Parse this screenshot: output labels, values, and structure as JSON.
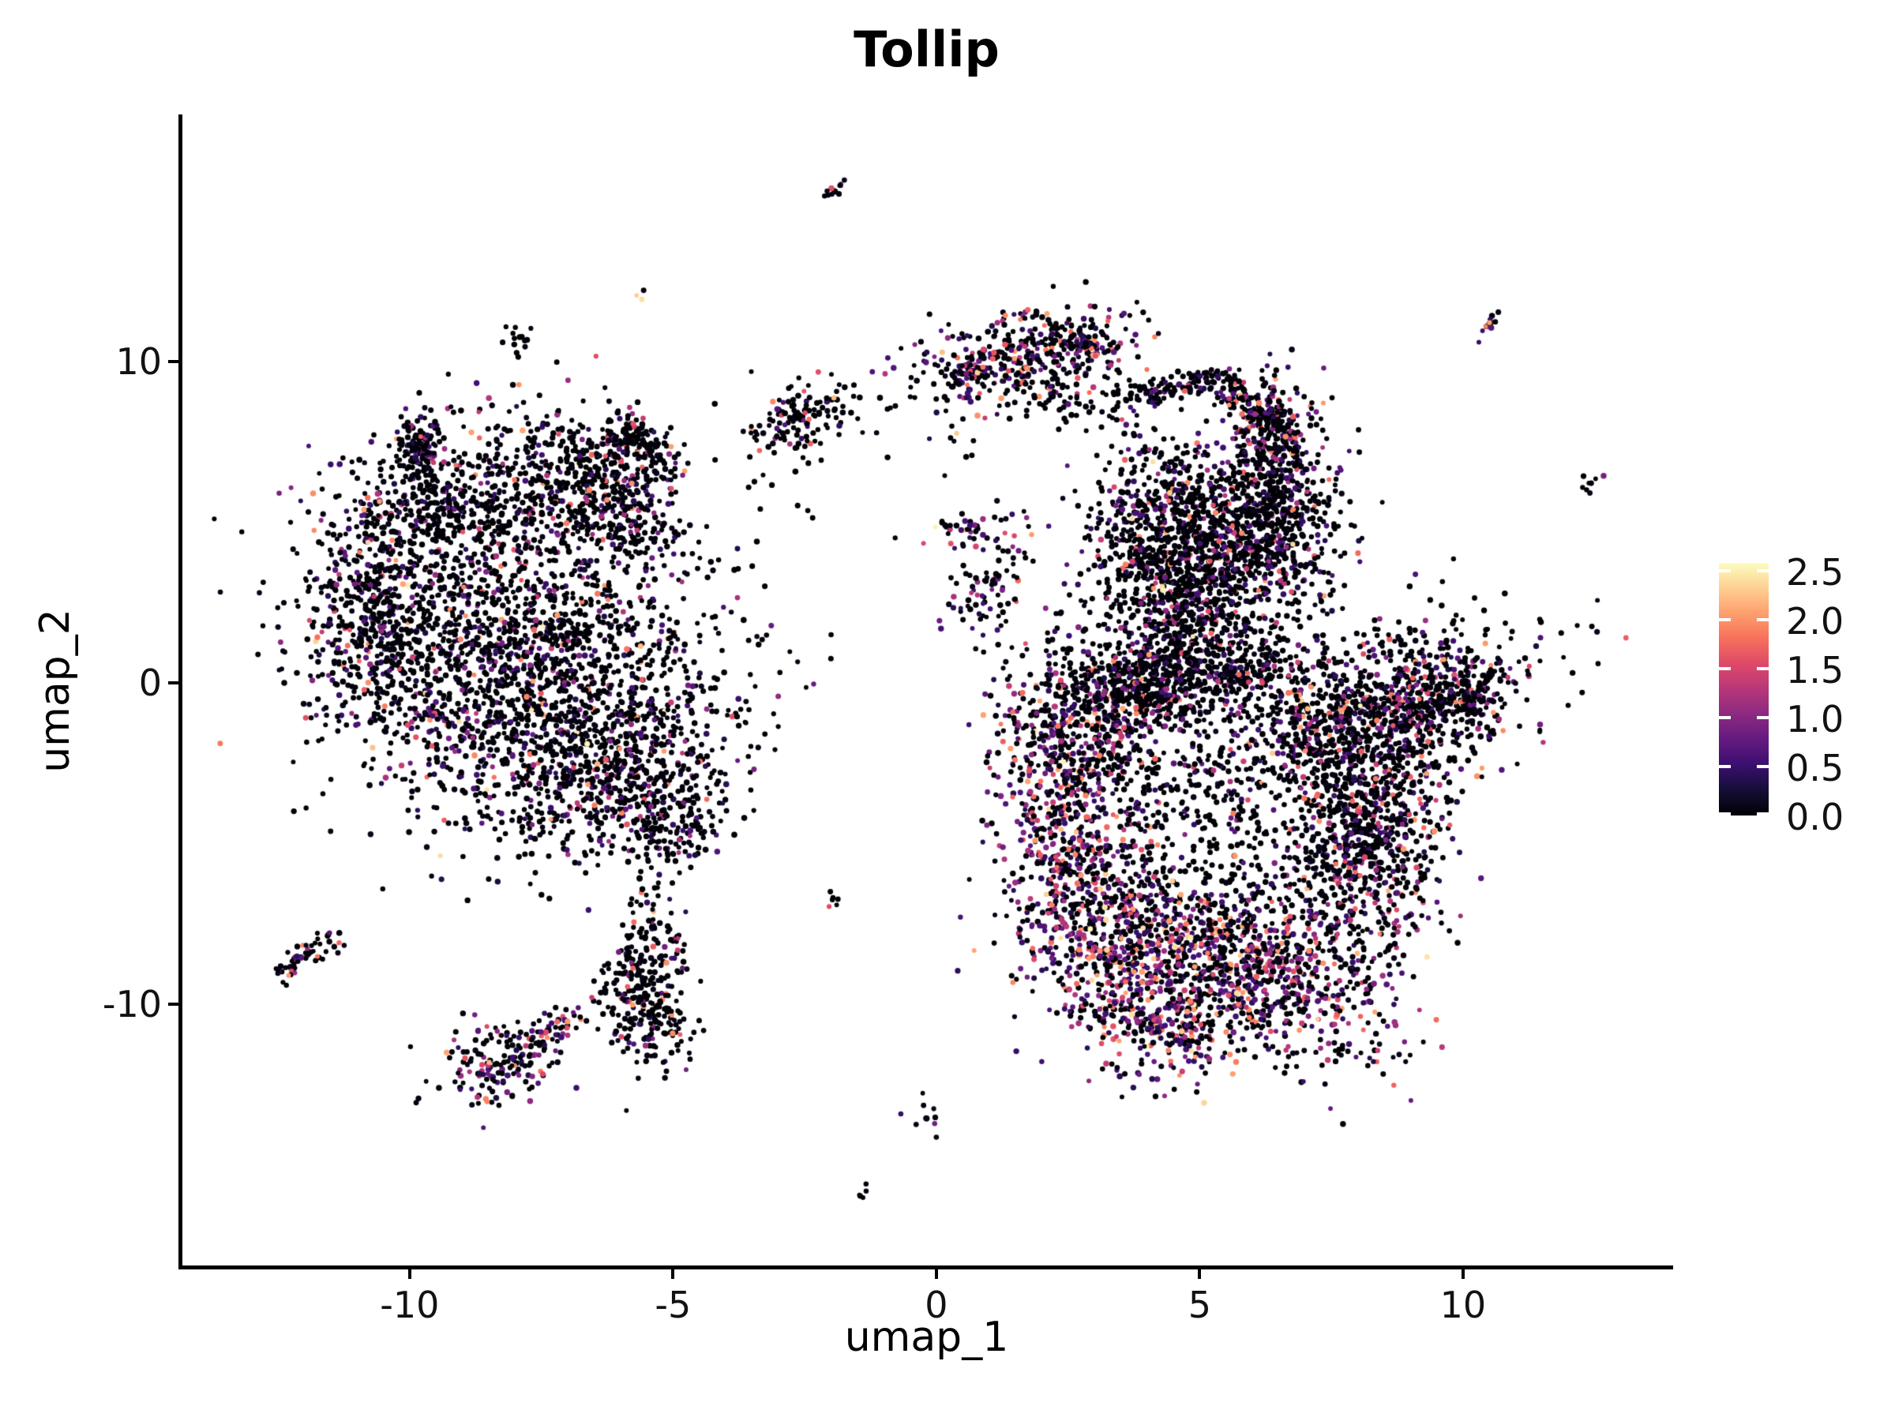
{
  "title": {
    "text": "Tollip"
  },
  "axes": {
    "x": {
      "label": "umap_1",
      "tick_labels": [
        "-10",
        "-5",
        "0",
        "5",
        "10"
      ],
      "tick_values": [
        -10,
        -5,
        0,
        5,
        10
      ]
    },
    "y": {
      "label": "umap_2",
      "tick_labels": [
        "10",
        "0",
        "-10"
      ],
      "tick_values": [
        10,
        0,
        -10
      ]
    }
  },
  "legend": {
    "tick_labels": [
      "2.5",
      "2.0",
      "1.5",
      "1.0",
      "0.5",
      "0.0"
    ],
    "tick_values": [
      2.5,
      2.0,
      1.5,
      1.0,
      0.5,
      0.0
    ],
    "vmax": 2.58
  },
  "chart_data": {
    "type": "scatter",
    "title": "Tollip",
    "xlabel": "umap_1",
    "ylabel": "umap_2",
    "xlim": [
      -14.36,
      13.99
    ],
    "ylim": [
      -18.16,
      17.67
    ],
    "x_ticks": [
      -10,
      -5,
      0,
      5,
      10
    ],
    "y_ticks": [
      10,
      0,
      -10
    ],
    "grid": false,
    "legend_position": "right",
    "point_radius": 3.3,
    "seed": 20,
    "color_scale": {
      "name": "magma",
      "domain": [
        0,
        2.6
      ],
      "stops": [
        [
          0.0,
          "#000004"
        ],
        [
          0.1,
          "#140e36"
        ],
        [
          0.2,
          "#3b0f70"
        ],
        [
          0.3,
          "#641a80"
        ],
        [
          0.4,
          "#8c2981"
        ],
        [
          0.5,
          "#b73779"
        ],
        [
          0.6,
          "#de4968"
        ],
        [
          0.7,
          "#f7705c"
        ],
        [
          0.8,
          "#fe9f6d"
        ],
        [
          0.9,
          "#fecf92"
        ],
        [
          1.0,
          "#fcfdbf"
        ]
      ]
    },
    "expression_bins": [
      [
        0.0,
        0.12
      ],
      [
        0.3,
        0.72
      ],
      [
        0.78,
        1.42
      ],
      [
        1.5,
        2.12
      ],
      [
        2.2,
        2.58
      ]
    ],
    "profiles": {
      "dark": [
        1,
        0,
        0,
        0,
        0
      ],
      "mostly_black": [
        0.88,
        0.07,
        0.03,
        0.02,
        0
      ],
      "typical": [
        0.78,
        0.12,
        0.06,
        0.035,
        0.005
      ],
      "accent_black": [
        0.82,
        0.06,
        0.05,
        0.06,
        0.01
      ],
      "semicolor": [
        0.68,
        0.15,
        0.1,
        0.065,
        0.005
      ],
      "colorful": [
        0.58,
        0.19,
        0.13,
        0.09,
        0.01
      ],
      "hot": [
        0.44,
        0.22,
        0.19,
        0.13,
        0.02
      ],
      "pale_dash": [
        0.34,
        0,
        0,
        0.06,
        0.6
      ]
    },
    "clusters": [
      {
        "name": "left-main",
        "profile": "typical",
        "blobs": [
          {
            "kind": "g",
            "u": -9.82,
            "v": 7.34,
            "su": 0.22,
            "sv": 0.42,
            "rot": 0,
            "n": 110
          },
          {
            "kind": "seg",
            "u1": -9.74,
            "v1": 6.75,
            "u2": -9.16,
            "v2": 5.15,
            "j": 0.18,
            "n": 45,
            "p": "mostly_black"
          },
          {
            "kind": "g",
            "u": -5.61,
            "v": 7.48,
            "su": 0.24,
            "sv": 0.64,
            "rot": -55,
            "n": 140
          },
          {
            "kind": "g",
            "u": -6.36,
            "v": 5.82,
            "su": 0.57,
            "sv": 1.18,
            "rot": -50,
            "n": 380
          },
          {
            "kind": "g",
            "u": -9.01,
            "v": 5.52,
            "su": 1.42,
            "sv": 1.35,
            "rot": -18,
            "n": 650
          },
          {
            "kind": "g",
            "u": -10.66,
            "v": 1.84,
            "su": 0.63,
            "sv": 1.72,
            "rot": 8,
            "n": 420
          },
          {
            "kind": "g",
            "u": -8.18,
            "v": 1.6,
            "su": 1.72,
            "sv": 1.84,
            "rot": -12,
            "n": 900
          },
          {
            "kind": "g",
            "u": -7.28,
            "v": -0.98,
            "su": 1.72,
            "sv": 1.72,
            "rot": -15,
            "n": 850
          },
          {
            "kind": "g",
            "u": -5.94,
            "v": -3.07,
            "su": 1.12,
            "sv": 1.35,
            "rot": -25,
            "n": 480
          },
          {
            "kind": "g",
            "u": -4.96,
            "v": -4.42,
            "su": 0.45,
            "sv": 0.61,
            "rot": 0,
            "n": 120
          },
          {
            "kind": "g",
            "u": -8.03,
            "v": 1.6,
            "su": 2.47,
            "sv": 3.31,
            "rot": 0,
            "n": 170,
            "p": "mostly_black"
          }
        ]
      },
      {
        "name": "upper-satellites",
        "profile": "accent_black",
        "blobs": [
          {
            "kind": "g",
            "u": -7.88,
            "v": 10.67,
            "su": 0.19,
            "sv": 0.32,
            "rot": 0,
            "n": 14,
            "p": "dark"
          },
          {
            "kind": "g",
            "u": -5.55,
            "v": 12.0,
            "su": 0.09,
            "sv": 0.1,
            "rot": 0,
            "n": 3,
            "p": "pale_dash"
          },
          {
            "kind": "g",
            "u": -2.46,
            "v": 8.39,
            "su": 0.57,
            "sv": 0.54,
            "rot": -18,
            "n": 130
          },
          {
            "kind": "seg",
            "u1": -2.22,
            "v1": 15.09,
            "u2": -1.77,
            "v2": 15.44,
            "j": 0.06,
            "n": 12
          },
          {
            "kind": "seg",
            "u1": 10.19,
            "v1": 10.72,
            "u2": 10.7,
            "v2": 11.51,
            "j": 0.07,
            "n": 12,
            "p": "semicolor"
          },
          {
            "kind": "g",
            "u": 12.44,
            "v": 6.31,
            "su": 0.18,
            "sv": 0.2,
            "rot": -15,
            "n": 8,
            "p": "mostly_black"
          },
          {
            "kind": "g",
            "u": -3.39,
            "v": 6.5,
            "su": 1.35,
            "sv": 1.47,
            "rot": 0,
            "n": 16,
            "p": "dark"
          },
          {
            "kind": "g",
            "u": 2.46,
            "v": 2.58,
            "su": 0.9,
            "sv": 1.23,
            "rot": 0,
            "n": 18,
            "p": "dark"
          },
          {
            "kind": "g",
            "u": 0.66,
            "v": 7.24,
            "su": 0.6,
            "sv": 0.98,
            "rot": 0,
            "n": 10,
            "p": "dark"
          }
        ]
      },
      {
        "name": "top-flap",
        "profile": "colorful",
        "blobs": [
          {
            "kind": "g",
            "u": 1.71,
            "v": 10.13,
            "su": 1.08,
            "sv": 0.74,
            "rot": -12,
            "n": 400
          },
          {
            "kind": "g",
            "u": 0.63,
            "v": 9.69,
            "su": 0.18,
            "sv": 0.25,
            "rot": 0,
            "n": 35,
            "p": "typical"
          },
          {
            "kind": "seg",
            "u1": 2.58,
            "v1": 10.8,
            "u2": 3.18,
            "v2": 10.26,
            "j": 0.12,
            "n": 50
          },
          {
            "kind": "seg",
            "u1": 1.71,
            "v1": 8.96,
            "u2": 3.51,
            "v2": 8.47,
            "j": 0.27,
            "n": 55,
            "p": "mostly_black"
          },
          {
            "kind": "seg",
            "u1": 3.21,
            "v1": 9.45,
            "u2": 3.96,
            "v2": 8.96,
            "j": 0.18,
            "n": 28,
            "p": "mostly_black"
          }
        ]
      },
      {
        "name": "upper-right",
        "profile": "typical",
        "blobs": [
          {
            "kind": "seg",
            "u1": 3.96,
            "v1": 8.83,
            "u2": 5.31,
            "v2": 9.5,
            "j": 0.15,
            "n": 90
          },
          {
            "kind": "seg",
            "u1": 5.31,
            "v1": 9.5,
            "u2": 6.53,
            "v2": 7.98,
            "j": 0.15,
            "n": 100
          },
          {
            "kind": "g",
            "u": 6.36,
            "v": 7.61,
            "su": 0.36,
            "sv": 1.03,
            "rot": 0,
            "n": 230,
            "p": "semicolor"
          },
          {
            "kind": "g",
            "u": 4.38,
            "v": 4.74,
            "su": 0.78,
            "sv": 1.52,
            "rot": 0,
            "n": 650
          },
          {
            "kind": "g",
            "u": 6.5,
            "v": 5.03,
            "su": 0.72,
            "sv": 1.52,
            "rot": 0,
            "n": 550
          },
          {
            "kind": "g",
            "u": 5.49,
            "v": 4.05,
            "su": 0.72,
            "sv": 1.28,
            "rot": 0,
            "n": 380
          },
          {
            "kind": "g",
            "u": 4.78,
            "v": 2.33,
            "su": 0.72,
            "sv": 0.93,
            "rot": 0,
            "n": 240
          },
          {
            "kind": "seg",
            "u1": 4.11,
            "v1": 1.47,
            "u2": 3.93,
            "v2": -0.74,
            "j": 0.2,
            "n": 80
          }
        ]
      },
      {
        "name": "bridge",
        "profile": "semicolor",
        "blobs": [
          {
            "kind": "g",
            "u": 0.93,
            "v": 3.19,
            "su": 0.42,
            "sv": 0.98,
            "rot": 15,
            "n": 85
          },
          {
            "kind": "g",
            "u": 0.69,
            "v": 4.86,
            "su": 0.57,
            "sv": 0.25,
            "rot": -5,
            "n": 40
          }
        ]
      },
      {
        "name": "lower-right",
        "profile": "typical",
        "blobs": [
          {
            "kind": "g",
            "u": 4.71,
            "v": 0.17,
            "su": 1.42,
            "sv": 0.69,
            "rot": -6,
            "n": 700
          },
          {
            "kind": "g",
            "u": 8.38,
            "v": -0.98,
            "su": 1.42,
            "sv": 1.1,
            "rot": -20,
            "n": 1050,
            "p": "semicolor"
          },
          {
            "kind": "g",
            "u": 10.0,
            "v": -0.45,
            "su": 0.32,
            "sv": 0.38,
            "rot": -25,
            "n": 80
          },
          {
            "kind": "g",
            "u": 8.27,
            "v": -4.79,
            "su": 0.72,
            "sv": 2.09,
            "rot": 14,
            "n": 780,
            "p": "semicolor"
          },
          {
            "kind": "g",
            "u": 5.94,
            "v": -8.96,
            "su": 1.42,
            "sv": 1.23,
            "rot": 18,
            "n": 850,
            "p": "hot"
          },
          {
            "kind": "g",
            "u": 4.14,
            "v": -10.48,
            "su": 0.82,
            "sv": 0.86,
            "rot": 28,
            "n": 300,
            "p": "hot"
          },
          {
            "kind": "g",
            "u": 2.43,
            "v": -4.54,
            "su": 0.67,
            "sv": 2.45,
            "rot": -6,
            "n": 680,
            "p": "hot"
          },
          {
            "kind": "g",
            "u": 3.13,
            "v": -1.23,
            "su": 0.82,
            "sv": 1.23,
            "rot": 0,
            "n": 360,
            "p": "semicolor"
          },
          {
            "kind": "g",
            "u": 5.38,
            "v": -4.79,
            "su": 1.42,
            "sv": 2.33,
            "rot": 0,
            "n": 560,
            "p": "mostly_black"
          },
          {
            "kind": "g",
            "u": 3.51,
            "v": -7.98,
            "su": 0.75,
            "sv": 1.35,
            "rot": 30,
            "n": 300,
            "p": "hot"
          }
        ]
      },
      {
        "name": "bottom-satellites",
        "profile": "accent_black",
        "blobs": [
          {
            "kind": "seg",
            "u1": -12.46,
            "v1": -9.01,
            "u2": -11.36,
            "v2": -7.85,
            "j": 0.13,
            "n": 60,
            "p": "semicolor"
          },
          {
            "kind": "g",
            "u": -8.26,
            "v": -11.78,
            "su": 0.6,
            "sv": 0.64,
            "rot": -18,
            "n": 170,
            "p": "colorful"
          },
          {
            "kind": "seg",
            "u1": -7.7,
            "v1": -11.21,
            "u2": -6.87,
            "v2": -10.48,
            "j": 0.13,
            "n": 50,
            "p": "colorful"
          },
          {
            "kind": "g",
            "u": -5.52,
            "v": -8.83,
            "su": 0.39,
            "sv": 1.35,
            "rot": 8,
            "n": 200
          },
          {
            "kind": "g",
            "u": -5.26,
            "v": -10.67,
            "su": 0.33,
            "sv": 0.74,
            "rot": -20,
            "n": 80
          },
          {
            "kind": "g",
            "u": -5.94,
            "v": -9.2,
            "su": 0.21,
            "sv": 0.74,
            "rot": 15,
            "n": 50
          },
          {
            "kind": "g",
            "u": -2.01,
            "v": -6.72,
            "su": 0.13,
            "sv": 0.17,
            "rot": 0,
            "n": 6,
            "p": "mostly_black"
          },
          {
            "kind": "g",
            "u": -0.31,
            "v": -13.45,
            "su": 0.18,
            "sv": 0.27,
            "rot": 0,
            "n": 10,
            "p": "semicolor"
          },
          {
            "kind": "seg",
            "u1": -1.53,
            "v1": -16.0,
            "u2": -1.27,
            "v2": -15.71,
            "j": 0.05,
            "n": 5
          }
        ]
      }
    ]
  }
}
